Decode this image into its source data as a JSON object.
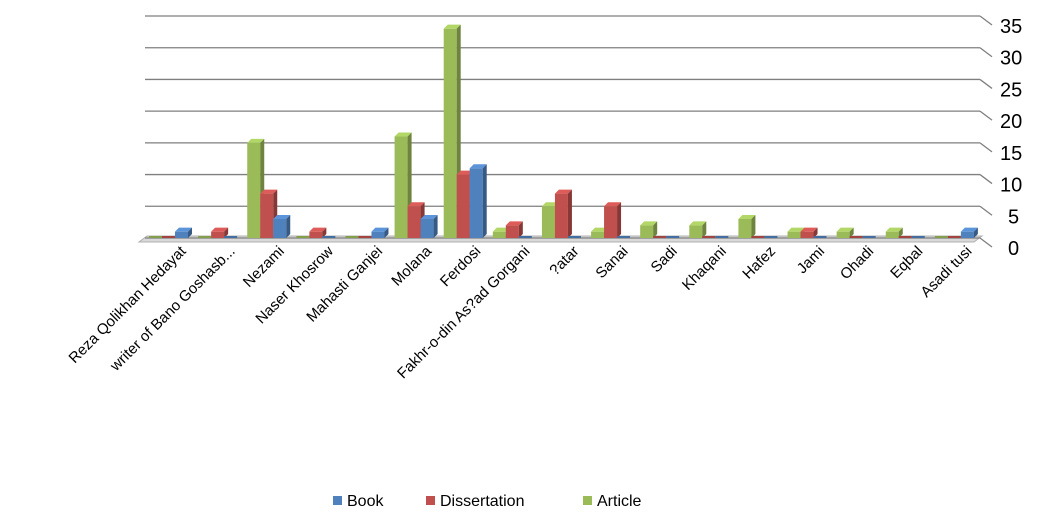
{
  "chart_data": {
    "type": "bar",
    "title": "",
    "xlabel": "",
    "ylabel": "",
    "ylim": [
      0,
      35
    ],
    "yticks": [
      0,
      5,
      10,
      15,
      20,
      25,
      30,
      35
    ],
    "grid": true,
    "legend_position": "bottom",
    "categories": [
      "Reza Qolikhan Hedayat",
      "writer of Bano Goshasb...",
      "Nezami",
      "Naser Khosrow",
      "Mahasti Ganjei",
      "Molana",
      "Ferdosi",
      "Fakhr-o-din As?ad Gorgani",
      "?atar",
      "Sanai",
      "Sadi",
      "Khaqani",
      "Hafez",
      "Jami",
      "Ohadi",
      "Eqbal",
      "Asadi tusi"
    ],
    "series": [
      {
        "name": "Article",
        "color": "#9bbb59",
        "values": [
          0,
          0,
          15,
          0,
          0,
          16,
          33,
          1,
          5,
          1,
          2,
          2,
          3,
          1,
          1,
          1,
          0
        ]
      },
      {
        "name": "Dissertation",
        "color": "#c0504d",
        "values": [
          0,
          1,
          7,
          1,
          0,
          5,
          10,
          2,
          7,
          5,
          0,
          0,
          0,
          1,
          0,
          0,
          0
        ]
      },
      {
        "name": "Book",
        "color": "#4f81bd",
        "values": [
          1,
          0,
          3,
          0,
          1,
          3,
          11,
          0,
          0,
          0,
          0,
          0,
          0,
          0,
          0,
          0,
          1
        ]
      }
    ],
    "legend": [
      "Book",
      "Dissertation",
      "Article"
    ]
  }
}
